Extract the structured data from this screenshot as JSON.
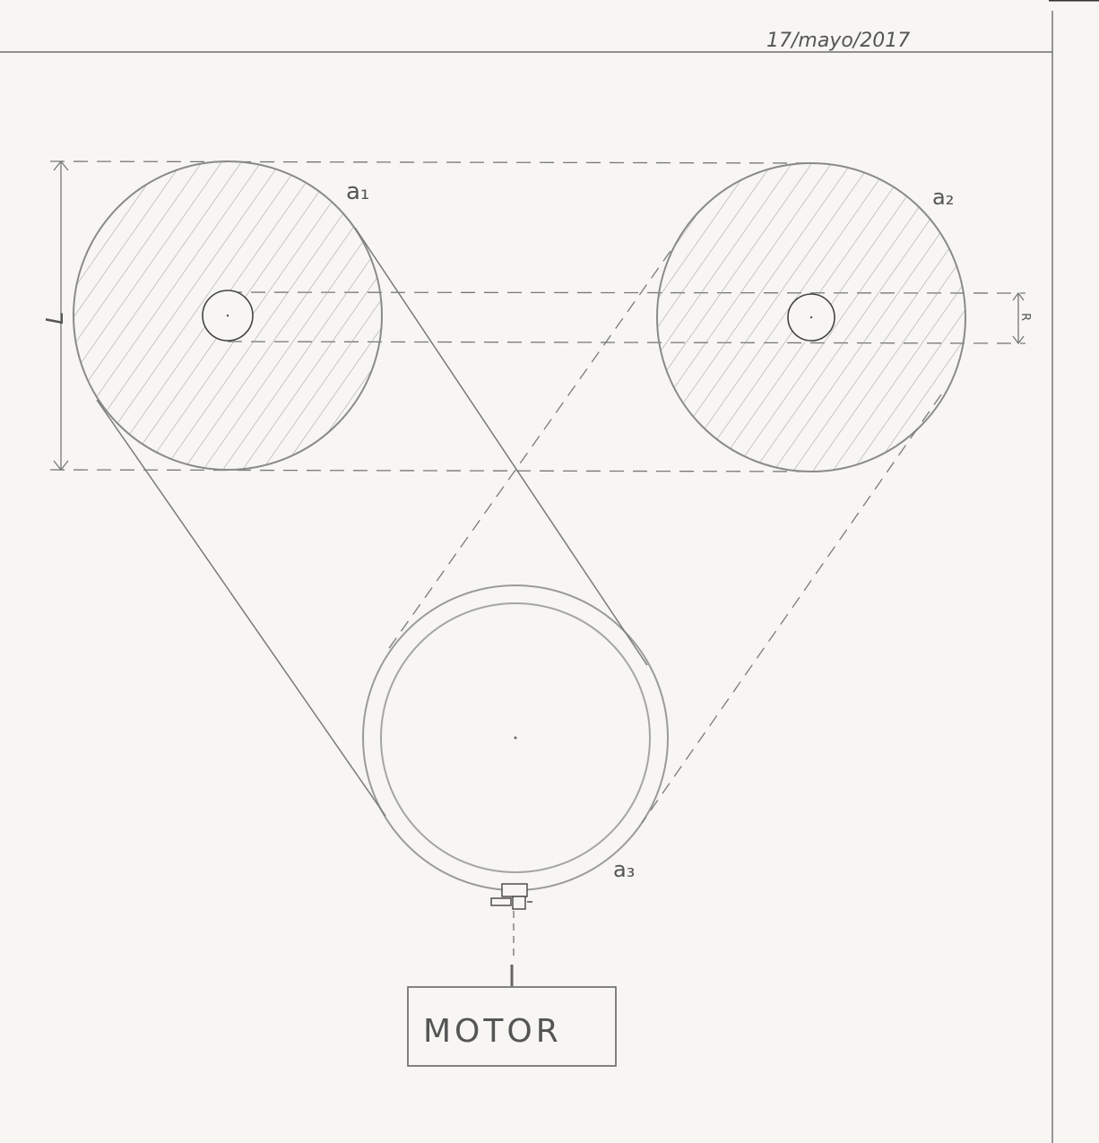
{
  "header": {
    "date": "17/mayo/2017"
  },
  "labels": {
    "pulley_1": "a₁",
    "pulley_2": "a₂",
    "pulley_3": "a₃",
    "dimension_L": "L",
    "dimension_R": "R"
  },
  "motor": {
    "label": "MOTOR"
  },
  "colors": {
    "paper": "#f7f6f3",
    "pencil": "#8a8a8a",
    "dark_pencil": "#555555"
  }
}
